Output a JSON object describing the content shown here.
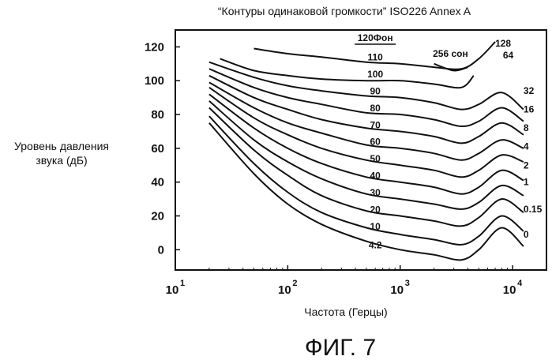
{
  "chart_data": {
    "type": "line",
    "title": "“Контуры одинаковой громкости” ISO226 Annex A",
    "ylabel_lines": [
      "Уровень давления",
      "звука (дБ)"
    ],
    "xlabel": "Частота (Герцы)",
    "xscale": "log",
    "xlim": [
      10,
      20000
    ],
    "ylim": [
      -12,
      130
    ],
    "xticks": [
      {
        "value": 10,
        "label": "10",
        "exp": "1"
      },
      {
        "value": 100,
        "label": "10",
        "exp": "2"
      },
      {
        "value": 1000,
        "label": "10",
        "exp": "3"
      },
      {
        "value": 10000,
        "label": "10",
        "exp": "4"
      }
    ],
    "yticks": [
      {
        "value": 0,
        "label": "0"
      },
      {
        "value": 20,
        "label": "20"
      },
      {
        "value": 40,
        "label": "40"
      },
      {
        "value": 60,
        "label": "60"
      },
      {
        "value": 80,
        "label": "80"
      },
      {
        "value": 100,
        "label": "100"
      },
      {
        "value": 120,
        "label": "120"
      }
    ],
    "phon_header": "120Фон",
    "sone_header": "256 сон",
    "series": [
      {
        "name": "4.2",
        "x": [
          20,
          50,
          100,
          200,
          500,
          1000,
          2000,
          3500,
          5000,
          8000,
          12500
        ],
        "y": [
          75,
          45,
          27,
          15,
          5,
          0,
          -3,
          -6,
          0,
          13,
          2
        ]
      },
      {
        "name": "10",
        "x": [
          20,
          50,
          100,
          200,
          500,
          1000,
          2000,
          3500,
          5000,
          8000,
          12500
        ],
        "y": [
          79,
          51,
          34,
          22,
          13,
          9,
          6,
          3,
          8,
          20,
          11
        ]
      },
      {
        "name": "20",
        "x": [
          20,
          50,
          100,
          200,
          500,
          1000,
          2000,
          3500,
          5000,
          8000,
          12500
        ],
        "y": [
          84,
          59,
          44,
          32,
          23,
          20,
          17,
          14,
          19,
          30,
          22
        ]
      },
      {
        "name": "30",
        "x": [
          20,
          50,
          100,
          200,
          500,
          1000,
          2000,
          3500,
          5000,
          8000,
          12500
        ],
        "y": [
          88,
          65,
          52,
          42,
          33,
          30,
          27,
          24,
          28,
          38,
          32
        ]
      },
      {
        "name": "40",
        "x": [
          20,
          50,
          100,
          200,
          500,
          1000,
          2000,
          3500,
          5000,
          8000,
          12500
        ],
        "y": [
          92,
          72,
          60,
          51,
          43,
          40,
          37,
          33,
          37,
          47,
          41
        ]
      },
      {
        "name": "50",
        "x": [
          20,
          50,
          100,
          200,
          500,
          1000,
          2000,
          3500,
          5000,
          8000,
          12500
        ],
        "y": [
          96,
          78,
          68,
          60,
          53,
          50,
          47,
          43,
          47,
          56,
          52
        ]
      },
      {
        "name": "60",
        "x": [
          20,
          50,
          100,
          200,
          500,
          1000,
          2000,
          3500,
          5000,
          8000,
          12500
        ],
        "y": [
          99,
          84,
          75,
          69,
          62,
          60,
          57,
          53,
          57,
          65,
          60
        ]
      },
      {
        "name": "70",
        "x": [
          20,
          50,
          100,
          200,
          500,
          1000,
          2000,
          3500,
          5000,
          8000,
          12500
        ],
        "y": [
          103,
          90,
          83,
          77,
          72,
          70,
          67,
          63,
          67,
          75,
          68
        ]
      },
      {
        "name": "80",
        "x": [
          20,
          50,
          100,
          200,
          500,
          1000,
          2000,
          3500,
          5000,
          8000,
          12500
        ],
        "y": [
          107,
          96,
          90,
          86,
          81,
          80,
          77,
          73,
          76,
          84,
          76
        ]
      },
      {
        "name": "90",
        "x": [
          20,
          50,
          100,
          200,
          500,
          1000,
          2000,
          3500,
          5000,
          8000,
          12500
        ],
        "y": [
          111,
          102,
          97,
          94,
          91,
          90,
          87,
          83,
          86,
          93,
          83
        ]
      },
      {
        "name": "100",
        "x": [
          25,
          50,
          100,
          200,
          500,
          1000,
          2000,
          3500,
          4500
        ],
        "y": [
          113,
          106,
          103,
          101,
          100,
          100,
          98,
          96,
          103
        ]
      },
      {
        "name": "110",
        "x": [
          50,
          100,
          200,
          500,
          1000,
          2000,
          3500,
          5000,
          7000
        ],
        "y": [
          119,
          116,
          114,
          111,
          110,
          108,
          107,
          113,
          123
        ]
      },
      {
        "name": "256 сон",
        "x": [
          2000,
          3000,
          4000
        ],
        "y": [
          110,
          106,
          108
        ]
      }
    ],
    "contour_labels": [
      {
        "text": "110",
        "x": 600,
        "y": 111
      },
      {
        "text": "100",
        "x": 600,
        "y": 101
      },
      {
        "text": "90",
        "x": 600,
        "y": 91
      },
      {
        "text": "80",
        "x": 600,
        "y": 81
      },
      {
        "text": "70",
        "x": 600,
        "y": 71
      },
      {
        "text": "60",
        "x": 600,
        "y": 61
      },
      {
        "text": "50",
        "x": 600,
        "y": 51
      },
      {
        "text": "40",
        "x": 600,
        "y": 41
      },
      {
        "text": "30",
        "x": 600,
        "y": 31
      },
      {
        "text": "20",
        "x": 600,
        "y": 21
      },
      {
        "text": "10",
        "x": 600,
        "y": 11
      },
      {
        "text": "4.2",
        "x": 600,
        "y": 0
      }
    ],
    "sone_labels": [
      {
        "text": "128",
        "x": 7000,
        "y": 122
      },
      {
        "text": "64",
        "x": 8200,
        "y": 115
      },
      {
        "text": "32",
        "x": 12500,
        "y": 94
      },
      {
        "text": "16",
        "x": 12500,
        "y": 83
      },
      {
        "text": "8",
        "x": 12500,
        "y": 72
      },
      {
        "text": "4",
        "x": 12500,
        "y": 61
      },
      {
        "text": "2",
        "x": 12500,
        "y": 50
      },
      {
        "text": "1",
        "x": 12500,
        "y": 40
      },
      {
        "text": "0.15",
        "x": 12500,
        "y": 24
      },
      {
        "text": "0",
        "x": 12500,
        "y": 9
      }
    ]
  },
  "caption": "ФИГ. 7"
}
